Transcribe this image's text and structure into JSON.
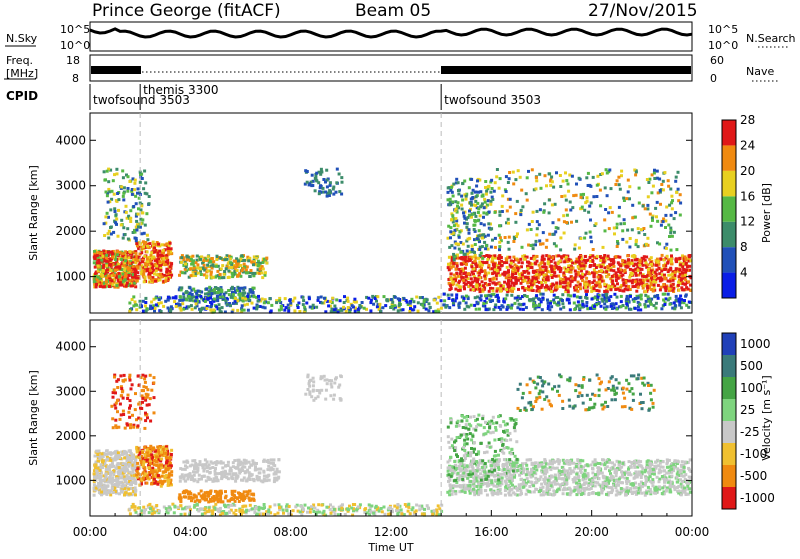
{
  "header": {
    "station": "Prince George (fitACF)",
    "beam": "Beam 05",
    "date": "27/Nov/2015"
  },
  "panels": {
    "nsky_label": "N.Sky",
    "nsearch_label": "N.Search",
    "freq_label_1": "Freq.",
    "freq_label_2": "[MHz]",
    "nave_label": "Nave",
    "cpid_label": "CPID",
    "left_log_hi": "10^5",
    "left_log_lo": "10^0",
    "right_log_hi": "10^5",
    "right_log_lo": "10^0",
    "freq_hi": "18",
    "freq_lo": "8",
    "nave_hi": "60",
    "nave_lo": "0"
  },
  "cpid_segments": [
    {
      "label": "twofsound 3503",
      "start_h": 0,
      "end_h": 2
    },
    {
      "label": "themis 3300",
      "start_h": 2,
      "end_h": 14
    },
    {
      "label": "twofsound 3503",
      "start_h": 14,
      "end_h": 24
    }
  ],
  "chart_data": [
    {
      "type": "heatmap",
      "name": "power",
      "ylabel": "Slant Range [km]",
      "ylim": [
        200,
        4600
      ],
      "yticks": [
        "1000",
        "2000",
        "3000",
        "4000"
      ],
      "colorbar_title": "Power [dB]",
      "colorbar_ticks": [
        "4",
        "8",
        "12",
        "16",
        "20",
        "24",
        "28"
      ],
      "colors": [
        "#0a1ee6",
        "#2050b8",
        "#3c8c6a",
        "#55b844",
        "#e8d020",
        "#f08a10",
        "#e01818"
      ]
    },
    {
      "type": "heatmap",
      "name": "velocity",
      "ylabel": "Slant Range [km]",
      "xlabel": "Time UT",
      "ylim": [
        200,
        4600
      ],
      "yticks": [
        "1000",
        "2000",
        "3000",
        "4000"
      ],
      "xticks": [
        "00:00",
        "04:00",
        "08:00",
        "12:00",
        "16:00",
        "20:00",
        "00:00"
      ],
      "colorbar_title": "Velocity [m s⁻¹]",
      "colorbar_ticks": [
        "1000",
        "500",
        "100",
        "25",
        "-25",
        "-100",
        "-500",
        "-1000"
      ],
      "colors": [
        "#2040b8",
        "#3a7a7a",
        "#44a444",
        "#7ed47e",
        "#c8c8c8",
        "#f0c030",
        "#f08a10",
        "#e01818"
      ]
    }
  ]
}
